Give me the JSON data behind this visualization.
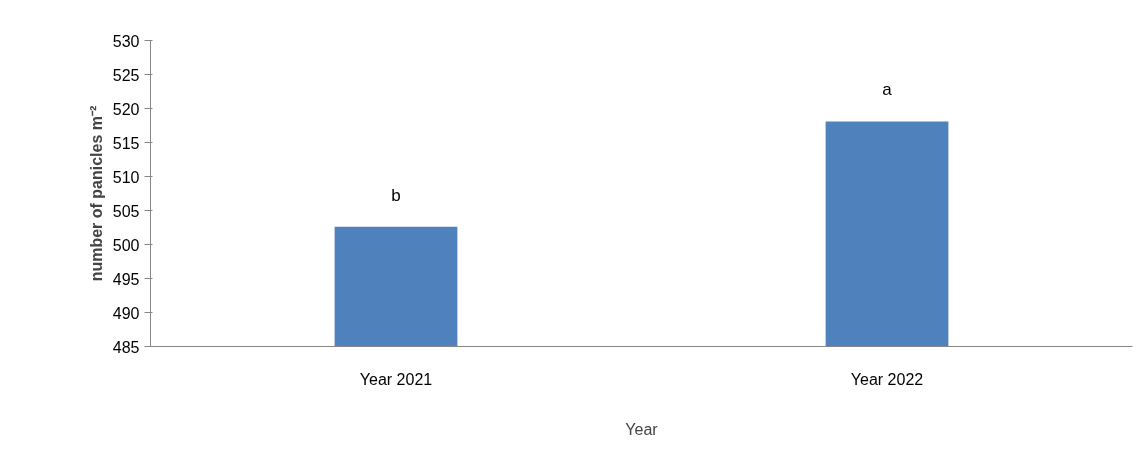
{
  "chart_data": {
    "type": "bar",
    "xlabel": "Year",
    "ylabel": "number of panicles m⁻²",
    "categories": [
      "Year 2021",
      "Year 2022"
    ],
    "values": [
      502.6,
      518.1
    ],
    "color": "#4f81bd",
    "ylim": [
      485,
      530
    ],
    "yticks": [
      485,
      490,
      495,
      500,
      505,
      510,
      515,
      520,
      525,
      530
    ],
    "grid": false,
    "annotations": [
      {
        "text": "b",
        "x": "Year 2021",
        "y": 502.6
      },
      {
        "text": "a",
        "x": "Year 2022",
        "y": 518.1
      }
    ]
  }
}
